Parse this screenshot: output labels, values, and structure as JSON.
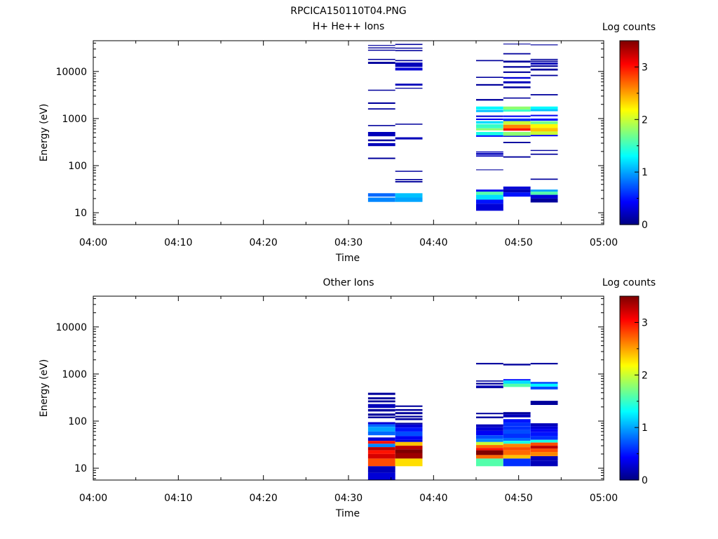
{
  "figure_title": "RPCICA150110T04.PNG",
  "colors": [
    "#00007f",
    "#0000ff",
    "#007fff",
    "#00ffff",
    "#7fff7f",
    "#ffff00",
    "#ff7f00",
    "#ff0000",
    "#7f0000"
  ],
  "chart_data": [
    {
      "type": "heatmap",
      "title": "H+ He++ Ions",
      "xlabel": "Time",
      "ylabel": "Energy (eV)",
      "x_tick_labels": [
        "04:00",
        "04:10",
        "04:20",
        "04:30",
        "04:40",
        "04:50",
        "05:00"
      ],
      "x_range_minutes": [
        0,
        60
      ],
      "y_scale": "log",
      "y_range": [
        5.6,
        45000
      ],
      "y_tick_labels": [
        "10",
        "100",
        "1000",
        "10000"
      ],
      "y_tick_values": [
        10,
        100,
        1000,
        10000
      ],
      "colorbar": {
        "label": "Log counts",
        "range": [
          0,
          3.5
        ],
        "tick_labels": [
          "0",
          "1",
          "2",
          "3"
        ],
        "tick_values": [
          0,
          1,
          2,
          3
        ]
      },
      "columns": [
        {
          "t_start": 32.3,
          "t_end": 35.5,
          "cells": [
            [
              35000,
              36500,
              0.1
            ],
            [
              31000,
              32500,
              0.1
            ],
            [
              27500,
              29000,
              0.1
            ],
            [
              17500,
              18500,
              0.1
            ],
            [
              14500,
              16000,
              0.1
            ],
            [
              3900,
              4100,
              0.1
            ],
            [
              2050,
              2200,
              0.1
            ],
            [
              1550,
              1650,
              0.1
            ],
            [
              690,
              730,
              0.1
            ],
            [
              420,
              520,
              0.2
            ],
            [
              330,
              360,
              0.1
            ],
            [
              260,
              300,
              0.2
            ],
            [
              138,
              148,
              0.1
            ],
            [
              22,
              26,
              0.8
            ],
            [
              17,
              21,
              0.9
            ]
          ]
        },
        {
          "t_start": 35.5,
          "t_end": 38.7,
          "cells": [
            [
              36500,
              38500,
              0.1
            ],
            [
              30500,
              32000,
              0.1
            ],
            [
              27000,
              28500,
              0.1
            ],
            [
              16500,
              17500,
              0.1
            ],
            [
              12500,
              15500,
              0.2
            ],
            [
              10500,
              12000,
              0.3
            ],
            [
              5000,
              5500,
              0.2
            ],
            [
              4300,
              4500,
              0.1
            ],
            [
              740,
              780,
              0.1
            ],
            [
              360,
              400,
              0.2
            ],
            [
              74,
              78,
              0.1
            ],
            [
              49,
              52,
              0.1
            ],
            [
              44,
              47,
              0.1
            ],
            [
              21,
              26,
              1.1
            ],
            [
              17,
              21,
              1.0
            ]
          ]
        },
        {
          "t_start": 45.0,
          "t_end": 48.2,
          "cells": [
            [
              16500,
              17500,
              0.1
            ],
            [
              7300,
              7700,
              0.1
            ],
            [
              5000,
              5400,
              0.1
            ],
            [
              2400,
              2600,
              0.1
            ],
            [
              1550,
              1800,
              1.3
            ],
            [
              1370,
              1520,
              1.1
            ],
            [
              1080,
              1160,
              0.3
            ],
            [
              930,
              1000,
              0.4
            ],
            [
              780,
              880,
              1.2
            ],
            [
              620,
              760,
              1.5
            ],
            [
              560,
              620,
              1.8
            ],
            [
              440,
              520,
              1.4
            ],
            [
              410,
              440,
              0.5
            ],
            [
              190,
              200,
              0.2
            ],
            [
              170,
              185,
              0.2
            ],
            [
              155,
              165,
              0.2
            ],
            [
              80,
              83,
              0.1
            ],
            [
              28,
              31,
              0.4
            ],
            [
              24,
              28,
              1.6
            ],
            [
              19,
              24,
              1.2
            ],
            [
              15.5,
              19,
              0.5
            ],
            [
              11,
              15.5,
              0.3
            ]
          ]
        },
        {
          "t_start": 48.2,
          "t_end": 51.4,
          "cells": [
            [
              37500,
              39000,
              0.1
            ],
            [
              23000,
              24500,
              0.1
            ],
            [
              15500,
              17000,
              0.1
            ],
            [
              12000,
              13000,
              0.1
            ],
            [
              9300,
              10000,
              0.1
            ],
            [
              7000,
              7600,
              0.3
            ],
            [
              5600,
              6200,
              0.2
            ],
            [
              4400,
              4800,
              0.1
            ],
            [
              2650,
              2800,
              0.1
            ],
            [
              1550,
              1800,
              1.8
            ],
            [
              1400,
              1550,
              1.5
            ],
            [
              1080,
              1160,
              0.4
            ],
            [
              880,
              1000,
              0.6
            ],
            [
              740,
              880,
              2.0
            ],
            [
              620,
              740,
              2.6
            ],
            [
              550,
              620,
              3.0
            ],
            [
              430,
              520,
              1.8
            ],
            [
              410,
              430,
              0.3
            ],
            [
              300,
              320,
              0.1
            ],
            [
              148,
              158,
              0.1
            ],
            [
              32,
              36,
              0.3
            ],
            [
              27,
              32,
              0.2
            ],
            [
              22,
              27,
              0.5
            ]
          ]
        },
        {
          "t_start": 51.4,
          "t_end": 54.6,
          "cells": [
            [
              36000,
              37500,
              0.1
            ],
            [
              17500,
              18500,
              0.1
            ],
            [
              16000,
              17000,
              0.1
            ],
            [
              14000,
              15500,
              0.2
            ],
            [
              12500,
              13500,
              0.1
            ],
            [
              10500,
              11500,
              0.1
            ],
            [
              8000,
              8500,
              0.1
            ],
            [
              3100,
              3300,
              0.1
            ],
            [
              1580,
              1800,
              1.3
            ],
            [
              1430,
              1580,
              1.1
            ],
            [
              1120,
              1200,
              0.4
            ],
            [
              900,
              1000,
              0.5
            ],
            [
              760,
              880,
              1.7
            ],
            [
              630,
              760,
              2.2
            ],
            [
              530,
              630,
              2.4
            ],
            [
              450,
              530,
              2.0
            ],
            [
              420,
              450,
              0.4
            ],
            [
              205,
              215,
              0.1
            ],
            [
              170,
              180,
              0.1
            ],
            [
              50,
              53,
              0.1
            ],
            [
              28,
              31,
              1.0
            ],
            [
              24,
              28,
              1.6
            ],
            [
              20,
              24,
              0.3
            ],
            [
              16.5,
              20,
              0.1
            ]
          ]
        }
      ]
    },
    {
      "type": "heatmap",
      "title": "Other Ions",
      "xlabel": "Time",
      "ylabel": "Energy (eV)",
      "x_tick_labels": [
        "04:00",
        "04:10",
        "04:20",
        "04:30",
        "04:40",
        "04:50",
        "05:00"
      ],
      "x_range_minutes": [
        0,
        60
      ],
      "y_scale": "log",
      "y_range": [
        5.6,
        45000
      ],
      "y_tick_labels": [
        "10",
        "100",
        "1000",
        "10000"
      ],
      "y_tick_values": [
        10,
        100,
        1000,
        10000
      ],
      "colorbar": {
        "label": "Log counts",
        "range": [
          0,
          3.5
        ],
        "tick_labels": [
          "0",
          "1",
          "2",
          "3"
        ],
        "tick_values": [
          0,
          1,
          2,
          3
        ]
      },
      "columns": [
        {
          "t_start": 32.3,
          "t_end": 35.5,
          "cells": [
            [
              360,
              400,
              0.1
            ],
            [
              290,
              320,
              0.1
            ],
            [
              250,
              275,
              0.1
            ],
            [
              190,
              230,
              0.2
            ],
            [
              160,
              180,
              0.1
            ],
            [
              130,
              145,
              0.1
            ],
            [
              115,
              125,
              0.1
            ],
            [
              85,
              95,
              0.3
            ],
            [
              75,
              85,
              0.8
            ],
            [
              60,
              75,
              1.0
            ],
            [
              50,
              60,
              0.8
            ],
            [
              38,
              45,
              0.3
            ],
            [
              33,
              38,
              3.0
            ],
            [
              28,
              33,
              0.9
            ],
            [
              24,
              28,
              3.3
            ],
            [
              20,
              24,
              3.0
            ],
            [
              16,
              20,
              3.2
            ],
            [
              11,
              16,
              2.8
            ],
            [
              8,
              11,
              0.2
            ],
            [
              5.6,
              8,
              0.3
            ]
          ]
        },
        {
          "t_start": 35.5,
          "t_end": 38.7,
          "cells": [
            [
              200,
              215,
              0.1
            ],
            [
              165,
              180,
              0.1
            ],
            [
              140,
              155,
              0.1
            ],
            [
              120,
              130,
              0.1
            ],
            [
              105,
              115,
              0.1
            ],
            [
              85,
              92,
              0.1
            ],
            [
              73,
              85,
              0.3
            ],
            [
              60,
              73,
              0.5
            ],
            [
              48,
              60,
              0.7
            ],
            [
              40,
              48,
              0.4
            ],
            [
              36,
              40,
              0.3
            ],
            [
              30,
              36,
              2.4
            ],
            [
              25,
              30,
              3.3
            ],
            [
              21,
              25,
              3.5
            ],
            [
              16,
              21,
              3.4
            ],
            [
              11,
              16,
              2.3
            ]
          ]
        },
        {
          "t_start": 45.0,
          "t_end": 48.2,
          "cells": [
            [
              1600,
              1720,
              0.1
            ],
            [
              690,
              730,
              0.1
            ],
            [
              600,
              650,
              0.1
            ],
            [
              530,
              570,
              0.2
            ],
            [
              500,
              530,
              0.1
            ],
            [
              140,
              150,
              0.1
            ],
            [
              115,
              125,
              0.1
            ],
            [
              75,
              85,
              0.2
            ],
            [
              62,
              75,
              0.3
            ],
            [
              50,
              62,
              0.4
            ],
            [
              42,
              50,
              0.7
            ],
            [
              36,
              42,
              0.9
            ],
            [
              31,
              36,
              2.0
            ],
            [
              27,
              31,
              2.7
            ],
            [
              24,
              27,
              3.0
            ],
            [
              19,
              24,
              3.5
            ],
            [
              16,
              19,
              2.7
            ],
            [
              11,
              16,
              1.6
            ]
          ]
        },
        {
          "t_start": 48.2,
          "t_end": 51.4,
          "cells": [
            [
              1520,
              1650,
              0.1
            ],
            [
              730,
              780,
              0.5
            ],
            [
              620,
              730,
              1.2
            ],
            [
              530,
              620,
              1.6
            ],
            [
              140,
              155,
              0.1
            ],
            [
              120,
              140,
              0.2
            ],
            [
              93,
              110,
              0.5
            ],
            [
              78,
              93,
              0.6
            ],
            [
              65,
              78,
              0.6
            ],
            [
              54,
              65,
              0.7
            ],
            [
              44,
              54,
              0.6
            ],
            [
              38,
              44,
              0.8
            ],
            [
              33,
              38,
              1.4
            ],
            [
              28,
              33,
              2.6
            ],
            [
              24,
              28,
              2.8
            ],
            [
              19,
              24,
              2.7
            ],
            [
              16,
              19,
              2.4
            ],
            [
              11,
              16,
              0.6
            ]
          ]
        },
        {
          "t_start": 51.4,
          "t_end": 54.6,
          "cells": [
            [
              1600,
              1720,
              0.1
            ],
            [
              620,
              680,
              0.7
            ],
            [
              540,
              620,
              1.3
            ],
            [
              470,
              540,
              0.7
            ],
            [
              240,
              270,
              0.1
            ],
            [
              220,
              240,
              0.1
            ],
            [
              78,
              90,
              0.2
            ],
            [
              68,
              78,
              0.3
            ],
            [
              58,
              68,
              0.4
            ],
            [
              48,
              58,
              0.5
            ],
            [
              40,
              48,
              0.6
            ],
            [
              35,
              40,
              1.4
            ],
            [
              30,
              35,
              2.8
            ],
            [
              26,
              30,
              3.3
            ],
            [
              22,
              26,
              2.8
            ],
            [
              18,
              22,
              2.6
            ],
            [
              14.5,
              18,
              0.2
            ],
            [
              11,
              14.5,
              0.2
            ]
          ]
        }
      ]
    }
  ]
}
